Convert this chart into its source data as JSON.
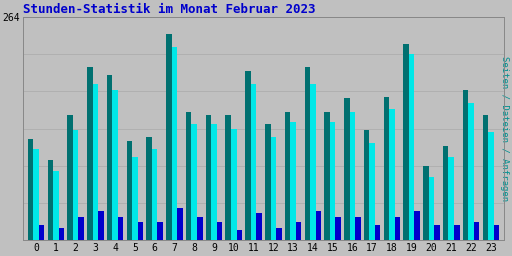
{
  "title": "Stunden-Statistik im Monat Februar 2023",
  "ylabel": "Seiten / Dateien / Anfragen",
  "xlabel_ticks": [
    0,
    1,
    2,
    3,
    4,
    5,
    6,
    7,
    8,
    9,
    10,
    11,
    12,
    13,
    14,
    15,
    16,
    17,
    18,
    19,
    20,
    21,
    22,
    23
  ],
  "ylim": [
    0,
    264
  ],
  "background_color": "#c0c0c0",
  "title_color": "#0000cc",
  "title_fontsize": 9,
  "bar_colors": [
    "#007070",
    "#00e8e8",
    "#0000cc"
  ],
  "ylabel_color": "#009090",
  "seiten": [
    120,
    95,
    148,
    205,
    195,
    118,
    122,
    244,
    152,
    148,
    148,
    200,
    138,
    152,
    205,
    152,
    168,
    130,
    170,
    232,
    88,
    112,
    178,
    148
  ],
  "dateien": [
    108,
    82,
    130,
    185,
    178,
    98,
    108,
    228,
    138,
    138,
    132,
    185,
    122,
    140,
    185,
    140,
    152,
    115,
    155,
    220,
    75,
    98,
    162,
    128
  ],
  "anfragen": [
    18,
    15,
    28,
    35,
    28,
    22,
    22,
    38,
    28,
    22,
    12,
    32,
    15,
    22,
    35,
    28,
    28,
    18,
    28,
    35,
    18,
    18,
    22,
    18
  ]
}
